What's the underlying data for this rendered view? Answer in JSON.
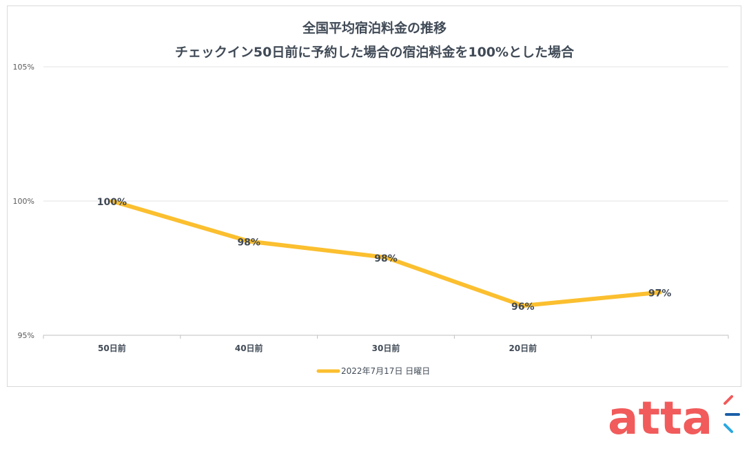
{
  "title": {
    "line1": "全国平均宿泊料金の推移",
    "line2": "チェックイン50日前に予約した場合の宿泊料金を100%とした場合"
  },
  "chart_data": {
    "type": "line",
    "categories": [
      "50日前",
      "40日前",
      "30日前",
      "20日前",
      ""
    ],
    "series": [
      {
        "name": "2022年7月17日 日曜日",
        "values": [
          100,
          98.5,
          97.9,
          96.1,
          96.6
        ],
        "labels": [
          "100%",
          "98%",
          "98%",
          "96%",
          "97%"
        ],
        "color": "#fbbf2f"
      }
    ],
    "y_ticks": [
      "95%",
      "100%",
      "105%"
    ],
    "y_tick_values": [
      95,
      100,
      105
    ],
    "ylim": [
      95,
      105
    ],
    "grid": true,
    "legend_position": "bottom"
  },
  "logo": {
    "text": "atta",
    "color": "#f15b5b",
    "accent_colors": [
      "#f15b5b",
      "#1b5fa8",
      "#29a8e0"
    ]
  }
}
